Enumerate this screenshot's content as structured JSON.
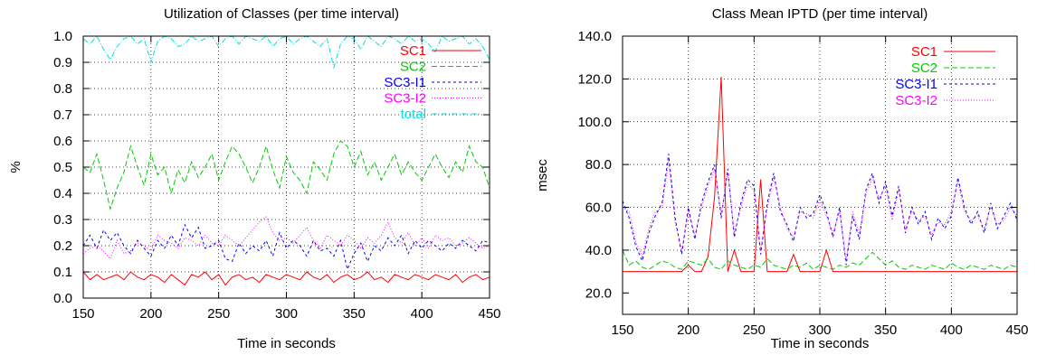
{
  "chart_data": [
    {
      "type": "line",
      "title": "Utilization of Classes (per time interval)",
      "xlabel": "Time in seconds",
      "ylabel": "%",
      "xlim": [
        150,
        450
      ],
      "ylim": [
        0.0,
        1.0
      ],
      "xticks": [
        "150",
        "200",
        "250",
        "300",
        "350",
        "400",
        "450"
      ],
      "yticks": [
        "0.0",
        "0.1",
        "0.2",
        "0.3",
        "0.4",
        "0.5",
        "0.6",
        "0.7",
        "0.8",
        "0.9",
        "1.0"
      ],
      "grid": true,
      "legend_position": "top-right",
      "x": [
        150,
        155,
        160,
        165,
        170,
        175,
        180,
        185,
        190,
        195,
        200,
        205,
        210,
        215,
        220,
        225,
        230,
        235,
        240,
        245,
        250,
        255,
        260,
        265,
        270,
        275,
        280,
        285,
        290,
        295,
        300,
        305,
        310,
        315,
        320,
        325,
        330,
        335,
        340,
        345,
        350,
        355,
        360,
        365,
        370,
        375,
        380,
        385,
        390,
        395,
        400,
        405,
        410,
        415,
        420,
        425,
        430,
        435,
        440,
        445,
        450
      ],
      "series": [
        {
          "name": "SC1",
          "color": "#ff0000",
          "dash": "solid",
          "values": [
            0.1,
            0.07,
            0.09,
            0.07,
            0.08,
            0.09,
            0.07,
            0.1,
            0.08,
            0.07,
            0.09,
            0.08,
            0.06,
            0.09,
            0.07,
            0.05,
            0.09,
            0.08,
            0.1,
            0.07,
            0.09,
            0.05,
            0.08,
            0.09,
            0.07,
            0.08,
            0.06,
            0.09,
            0.08,
            0.07,
            0.09,
            0.08,
            0.07,
            0.1,
            0.08,
            0.07,
            0.09,
            0.06,
            0.08,
            0.09,
            0.07,
            0.08,
            0.1,
            0.07,
            0.08,
            0.06,
            0.09,
            0.08,
            0.07,
            0.09,
            0.08,
            0.07,
            0.09,
            0.08,
            0.07,
            0.09,
            0.06,
            0.08,
            0.09,
            0.07,
            0.08
          ]
        },
        {
          "name": "SC2",
          "color": "#00cc00",
          "dash": "6,3",
          "values": [
            0.5,
            0.48,
            0.55,
            0.45,
            0.34,
            0.42,
            0.48,
            0.58,
            0.5,
            0.43,
            0.55,
            0.47,
            0.5,
            0.4,
            0.49,
            0.44,
            0.52,
            0.46,
            0.5,
            0.55,
            0.45,
            0.52,
            0.58,
            0.55,
            0.5,
            0.44,
            0.5,
            0.58,
            0.49,
            0.42,
            0.54,
            0.48,
            0.45,
            0.4,
            0.52,
            0.49,
            0.45,
            0.55,
            0.6,
            0.58,
            0.5,
            0.56,
            0.47,
            0.52,
            0.45,
            0.5,
            0.55,
            0.47,
            0.52,
            0.48,
            0.45,
            0.5,
            0.55,
            0.5,
            0.46,
            0.52,
            0.48,
            0.58,
            0.52,
            0.5,
            0.42
          ]
        },
        {
          "name": "SC3-I1",
          "color": "#0000ff",
          "dash": "3,3",
          "values": [
            0.2,
            0.24,
            0.19,
            0.26,
            0.22,
            0.25,
            0.2,
            0.17,
            0.22,
            0.19,
            0.16,
            0.22,
            0.19,
            0.24,
            0.2,
            0.28,
            0.23,
            0.27,
            0.19,
            0.2,
            0.22,
            0.15,
            0.14,
            0.21,
            0.17,
            0.2,
            0.18,
            0.22,
            0.16,
            0.25,
            0.19,
            0.22,
            0.2,
            0.16,
            0.22,
            0.18,
            0.19,
            0.16,
            0.22,
            0.11,
            0.17,
            0.21,
            0.14,
            0.2,
            0.18,
            0.23,
            0.2,
            0.24,
            0.17,
            0.22,
            0.19,
            0.22,
            0.2,
            0.18,
            0.21,
            0.19,
            0.22,
            0.2,
            0.18,
            0.22,
            0.21
          ]
        },
        {
          "name": "SC3-I2",
          "color": "#ff00ff",
          "dash": "1,2",
          "values": [
            0.17,
            0.19,
            0.2,
            0.18,
            0.15,
            0.22,
            0.17,
            0.18,
            0.21,
            0.2,
            0.18,
            0.24,
            0.22,
            0.21,
            0.19,
            0.23,
            0.22,
            0.2,
            0.24,
            0.21,
            0.2,
            0.24,
            0.22,
            0.2,
            0.23,
            0.26,
            0.29,
            0.31,
            0.25,
            0.22,
            0.23,
            0.21,
            0.24,
            0.27,
            0.22,
            0.19,
            0.24,
            0.22,
            0.2,
            0.24,
            0.22,
            0.19,
            0.23,
            0.21,
            0.24,
            0.29,
            0.23,
            0.21,
            0.25,
            0.2,
            0.23,
            0.19,
            0.24,
            0.22,
            0.23,
            0.2,
            0.21,
            0.23,
            0.21,
            0.19,
            0.2
          ]
        },
        {
          "name": "total",
          "color": "#00e0e0",
          "dash": "6,2,1,2",
          "values": [
            0.99,
            0.97,
            1.0,
            0.95,
            0.91,
            0.96,
            0.99,
            1.0,
            0.97,
            0.99,
            0.9,
            0.98,
            1.0,
            0.99,
            0.96,
            0.97,
            1.0,
            0.98,
            0.99,
            1.0,
            0.96,
            0.99,
            1.0,
            0.97,
            1.0,
            0.99,
            0.98,
            1.0,
            0.96,
            0.99,
            1.0,
            0.97,
            0.99,
            1.0,
            0.98,
            0.96,
            0.99,
            0.88,
            0.97,
            1.0,
            0.99,
            0.95,
            1.0,
            0.98,
            0.96,
            1.0,
            0.99,
            0.97,
            1.0,
            0.98,
            0.99,
            0.97,
            0.94,
            1.0,
            0.98,
            0.99,
            1.0,
            0.97,
            0.99,
            0.96,
            0.91
          ]
        }
      ]
    },
    {
      "type": "line",
      "title": "Class Mean IPTD (per time interval)",
      "xlabel": "Time in seconds",
      "ylabel": "msec",
      "xlim": [
        150,
        450
      ],
      "ylim": [
        10,
        140
      ],
      "xticks": [
        "150",
        "200",
        "250",
        "300",
        "350",
        "400",
        "450"
      ],
      "yticks": [
        "20.0",
        "40.0",
        "60.0",
        "80.0",
        "100.0",
        "120.0",
        "140.0"
      ],
      "ytick_values": [
        20,
        40,
        60,
        80,
        100,
        120,
        140
      ],
      "grid": true,
      "legend_position": "top-right",
      "x": [
        150,
        155,
        160,
        165,
        170,
        175,
        180,
        185,
        190,
        195,
        200,
        205,
        210,
        215,
        220,
        225,
        230,
        235,
        240,
        245,
        250,
        255,
        260,
        265,
        270,
        275,
        280,
        285,
        290,
        295,
        300,
        305,
        310,
        315,
        320,
        325,
        330,
        335,
        340,
        345,
        350,
        355,
        360,
        365,
        370,
        375,
        380,
        385,
        390,
        395,
        400,
        405,
        410,
        415,
        420,
        425,
        430,
        435,
        440,
        445,
        450
      ],
      "series": [
        {
          "name": "SC1",
          "color": "#ff0000",
          "dash": "solid",
          "values": [
            30,
            30,
            30,
            30,
            30,
            30,
            30,
            30,
            30,
            30,
            33,
            30,
            30,
            37,
            65,
            121,
            30,
            40,
            30,
            30,
            30,
            73,
            30,
            30,
            30,
            30,
            38,
            30,
            30,
            30,
            30,
            40,
            30,
            30,
            30,
            30,
            30,
            30,
            30,
            30,
            30,
            30,
            30,
            30,
            30,
            30,
            30,
            30,
            30,
            30,
            30,
            30,
            30,
            30,
            30,
            30,
            30,
            30,
            30,
            30,
            30
          ]
        },
        {
          "name": "SC2",
          "color": "#00cc00",
          "dash": "6,3",
          "values": [
            40,
            33,
            35,
            32,
            31,
            33,
            35,
            34,
            32,
            31,
            35,
            34,
            33,
            36,
            32,
            31,
            35,
            33,
            32,
            31,
            33,
            32,
            36,
            33,
            32,
            31,
            33,
            32,
            34,
            31,
            33,
            32,
            31,
            33,
            32,
            34,
            33,
            36,
            39,
            36,
            33,
            35,
            32,
            31,
            33,
            32,
            31,
            33,
            32,
            31,
            34,
            32,
            31,
            33,
            32,
            31,
            33,
            32,
            31,
            33,
            32
          ]
        },
        {
          "name": "SC3-I1",
          "color": "#0000ff",
          "dash": "3,3",
          "values": [
            63,
            55,
            42,
            35,
            48,
            56,
            62,
            85,
            55,
            38,
            60,
            45,
            62,
            72,
            80,
            55,
            78,
            46,
            62,
            73,
            70,
            38,
            62,
            76,
            58,
            52,
            44,
            60,
            55,
            57,
            66,
            58,
            46,
            60,
            33,
            56,
            45,
            68,
            76,
            62,
            72,
            56,
            70,
            48,
            60,
            52,
            58,
            45,
            55,
            50,
            56,
            74,
            60,
            52,
            58,
            48,
            62,
            50,
            56,
            62,
            54
          ]
        },
        {
          "name": "SC3-I2",
          "color": "#ff00ff",
          "dash": "1,2",
          "values": [
            60,
            58,
            44,
            37,
            50,
            58,
            60,
            82,
            53,
            40,
            58,
            47,
            60,
            70,
            78,
            57,
            76,
            48,
            60,
            71,
            68,
            40,
            60,
            74,
            60,
            50,
            46,
            58,
            57,
            55,
            64,
            56,
            48,
            58,
            35,
            58,
            47,
            66,
            74,
            64,
            70,
            54,
            68,
            50,
            58,
            54,
            56,
            47,
            53,
            52,
            58,
            72,
            58,
            54,
            56,
            50,
            60,
            52,
            54,
            60,
            56
          ]
        }
      ]
    }
  ]
}
